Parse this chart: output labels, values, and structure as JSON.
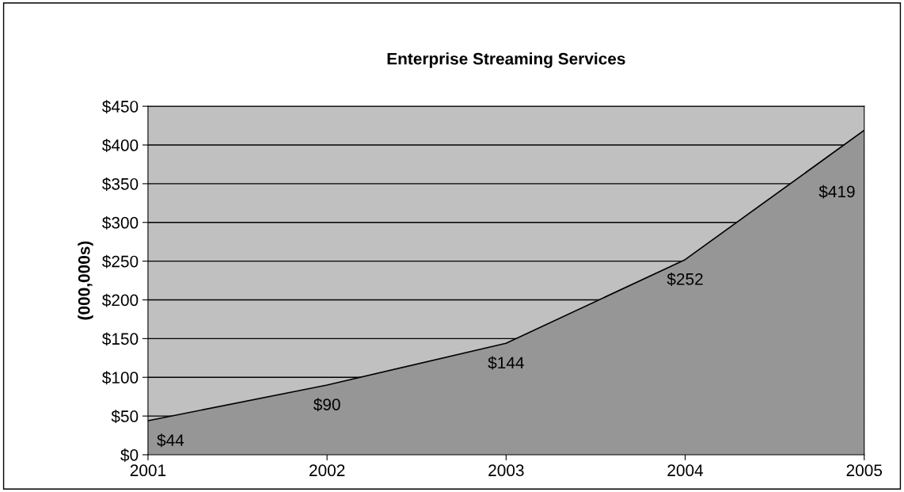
{
  "chart_data": {
    "type": "area",
    "title": "Enterprise Streaming Services",
    "ylabel": "(000,000s)",
    "categories": [
      "2001",
      "2002",
      "2003",
      "2004",
      "2005"
    ],
    "series": [
      {
        "color": "#969696",
        "values": [
          44,
          90,
          144,
          252,
          419
        ]
      }
    ],
    "value_labels": [
      "$44",
      "$90",
      "$144",
      "$252",
      "$419"
    ],
    "ylim": [
      0,
      450
    ],
    "yticks": [
      {
        "value": 0,
        "label": "$0"
      },
      {
        "value": 50,
        "label": "$50"
      },
      {
        "value": 100,
        "label": "$100"
      },
      {
        "value": 150,
        "label": "$150"
      },
      {
        "value": 200,
        "label": "$200"
      },
      {
        "value": 250,
        "label": "$250"
      },
      {
        "value": 300,
        "label": "$300"
      },
      {
        "value": 350,
        "label": "$350"
      },
      {
        "value": 400,
        "label": "$400"
      },
      {
        "value": 450,
        "label": "$450"
      }
    ],
    "grid": "y"
  }
}
